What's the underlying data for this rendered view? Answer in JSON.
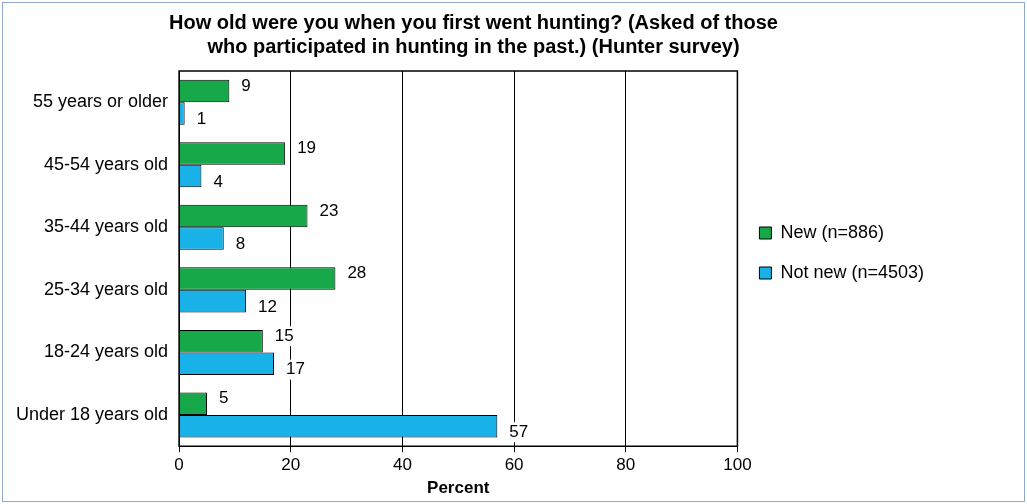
{
  "chart_data": {
    "type": "bar",
    "orientation": "horizontal",
    "title": "How old were you when you first went hunting? (Asked of those who participated in hunting in the past.) (Hunter survey)",
    "xlabel": "Percent",
    "categories": [
      "55 years or older",
      "45-54 years old",
      "35-44 years old",
      "25-34 years old",
      "18-24 years old",
      "Under 18 years old"
    ],
    "series": [
      {
        "name": "New (n=886)",
        "color": "#17a84a",
        "values": [
          9,
          19,
          23,
          28,
          15,
          5
        ]
      },
      {
        "name": "Not new (n=4503)",
        "color": "#19b2e8",
        "values": [
          1,
          4,
          8,
          12,
          17,
          57
        ]
      }
    ],
    "xlim": [
      0,
      100
    ],
    "xticks": [
      0,
      20,
      40,
      60,
      80,
      100
    ],
    "grid": "x",
    "legend": "right",
    "data_labels": true
  }
}
